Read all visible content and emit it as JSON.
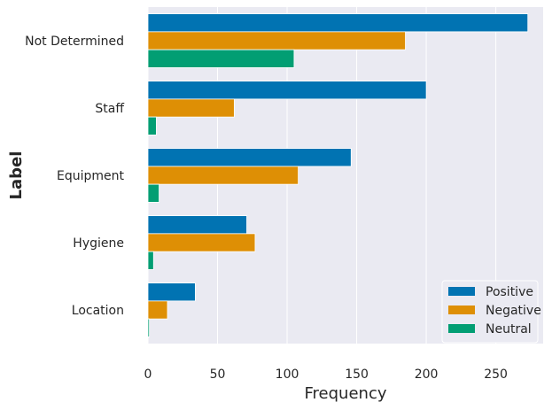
{
  "chart_data": {
    "type": "bar",
    "orientation": "horizontal",
    "categories": [
      "Not Determined",
      "Staff",
      "Equipment",
      "Hygiene",
      "Location"
    ],
    "series": [
      {
        "name": "Positive",
        "color": "#0173b2",
        "values": [
          273,
          200,
          146,
          71,
          34
        ]
      },
      {
        "name": "Negative",
        "color": "#de8f05",
        "values": [
          185,
          62,
          108,
          77,
          14
        ]
      },
      {
        "name": "Neutral",
        "color": "#029e73",
        "values": [
          105,
          6,
          8,
          4,
          1
        ]
      }
    ],
    "xlabel": "Frequency",
    "ylabel": "Label",
    "xlim": [
      0,
      284
    ],
    "xticks": [
      0,
      50,
      100,
      150,
      200,
      250
    ],
    "grid": true,
    "legend_position": "lower-right",
    "background": "#eaeaf2"
  }
}
